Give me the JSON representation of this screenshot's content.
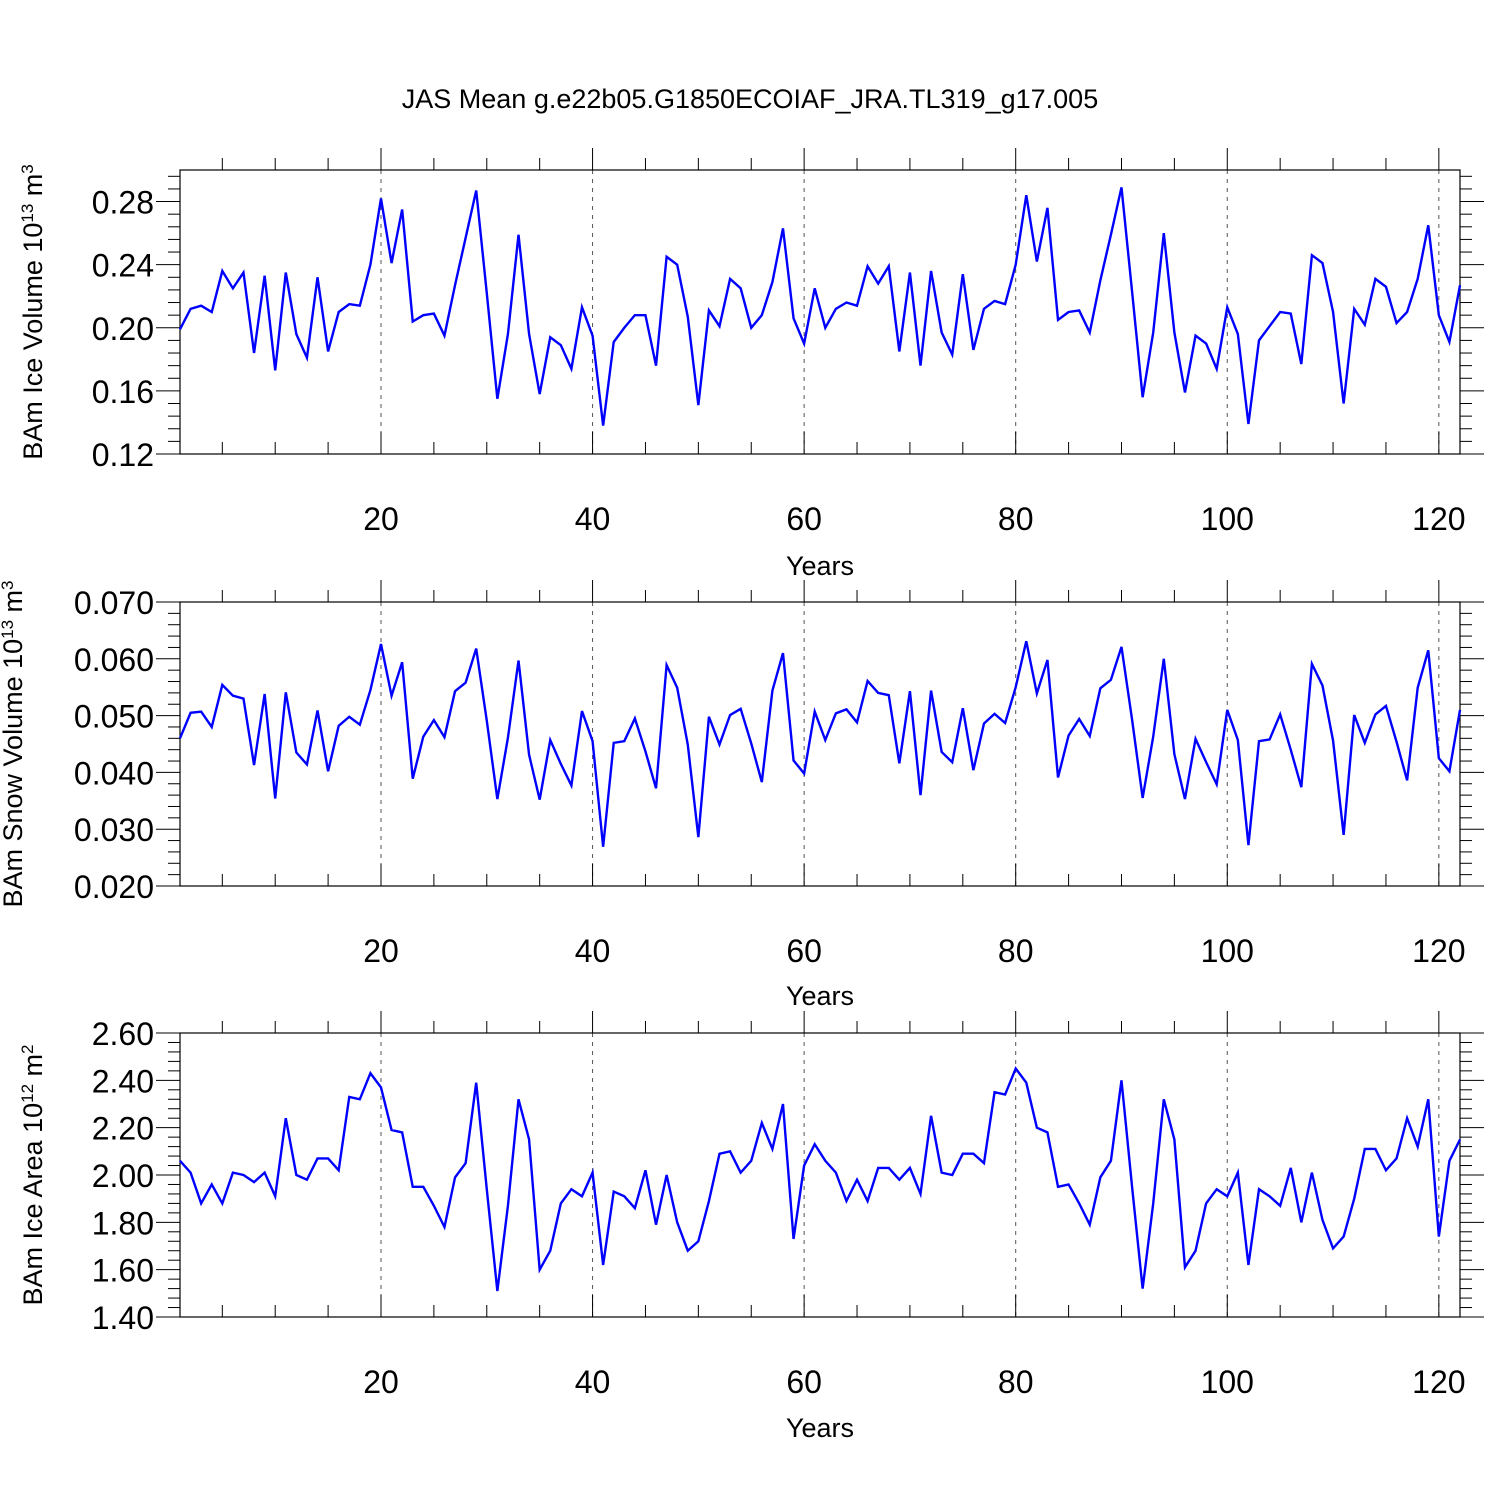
{
  "title": "JAS Mean g.e22b05.G1850ECOIAF_JRA.TL319_g17.005",
  "chart_data": [
    {
      "type": "line",
      "xlabel": "Years",
      "ylabel": {
        "pre": "BAm Ice Volume 10",
        "exp": "13",
        "mid": " m",
        "unit_exp": "3"
      },
      "xlim": [
        1,
        122
      ],
      "ylim": [
        0.12,
        0.3
      ],
      "xticks": [
        20,
        40,
        60,
        80,
        100,
        120
      ],
      "xtick_labels": [
        "20",
        "40",
        "60",
        "80",
        "100",
        "120"
      ],
      "yticks": [
        0.12,
        0.16,
        0.2,
        0.24,
        0.28
      ],
      "ytick_labels": [
        "0.12",
        "0.16",
        "0.20",
        "0.24",
        "0.28"
      ],
      "dashed_gridlines_x": [
        20,
        40,
        60,
        80,
        100,
        120
      ],
      "line_color": "#0000ff",
      "series": [
        {
          "x_start": 1,
          "values": [
            0.199,
            0.212,
            0.214,
            0.21,
            0.236,
            0.225,
            0.235,
            0.184,
            0.233,
            0.173,
            0.235,
            0.196,
            0.181,
            0.232,
            0.185,
            0.21,
            0.215,
            0.214,
            0.24,
            0.282,
            0.241,
            0.275,
            0.204,
            0.208,
            0.209,
            0.195,
            0.227,
            0.257,
            0.287,
            0.222,
            0.155,
            0.196,
            0.259,
            0.196,
            0.158,
            0.194,
            0.189,
            0.174,
            0.213,
            0.195,
            0.138,
            0.191,
            0.2,
            0.208,
            0.208,
            0.176,
            0.245,
            0.24,
            0.207,
            0.151,
            0.211,
            0.201,
            0.231,
            0.225,
            0.2,
            0.208,
            0.229,
            0.263,
            0.206,
            0.19,
            0.225,
            0.2,
            0.212,
            0.216,
            0.214,
            0.239,
            0.228,
            0.239,
            0.185,
            0.235,
            0.176,
            0.236,
            0.197,
            0.183,
            0.234,
            0.186,
            0.212,
            0.217,
            0.215,
            0.24,
            0.284,
            0.242,
            0.276,
            0.205,
            0.21,
            0.211,
            0.197,
            0.23,
            0.259,
            0.289,
            0.223,
            0.156,
            0.197,
            0.26,
            0.197,
            0.159,
            0.195,
            0.19,
            0.174,
            0.213,
            0.196,
            0.139,
            0.192,
            0.201,
            0.21,
            0.209,
            0.177,
            0.246,
            0.241,
            0.21,
            0.152,
            0.212,
            0.202,
            0.231,
            0.226,
            0.203,
            0.21,
            0.231,
            0.265,
            0.208,
            0.191,
            0.227
          ]
        }
      ]
    },
    {
      "type": "line",
      "xlabel": "Years",
      "ylabel": {
        "pre": "BAm Snow Volume 10",
        "exp": "13",
        "mid": " m",
        "unit_exp": "3"
      },
      "xlim": [
        1,
        122
      ],
      "ylim": [
        0.02,
        0.07
      ],
      "xticks": [
        20,
        40,
        60,
        80,
        100,
        120
      ],
      "xtick_labels": [
        "20",
        "40",
        "60",
        "80",
        "100",
        "120"
      ],
      "yticks": [
        0.02,
        0.03,
        0.04,
        0.05,
        0.06,
        0.07
      ],
      "ytick_labels": [
        "0.020",
        "0.030",
        "0.040",
        "0.050",
        "0.060",
        "0.070"
      ],
      "dashed_gridlines_x": [
        20,
        40,
        60,
        80,
        100,
        120
      ],
      "line_color": "#0000ff",
      "series": [
        {
          "x_start": 1,
          "values": [
            0.046,
            0.0505,
            0.0507,
            0.048,
            0.0554,
            0.0535,
            0.053,
            0.0413,
            0.0538,
            0.0354,
            0.0541,
            0.0435,
            0.0414,
            0.0509,
            0.0402,
            0.0482,
            0.0498,
            0.0484,
            0.0545,
            0.0626,
            0.0535,
            0.0594,
            0.0389,
            0.0463,
            0.0492,
            0.0462,
            0.0543,
            0.0558,
            0.0618,
            0.0491,
            0.0353,
            0.0461,
            0.0597,
            0.0431,
            0.0352,
            0.0457,
            0.0415,
            0.0377,
            0.0508,
            0.0455,
            0.0269,
            0.0452,
            0.0455,
            0.0495,
            0.0437,
            0.0372,
            0.0589,
            0.0549,
            0.0449,
            0.0286,
            0.0498,
            0.0449,
            0.0501,
            0.0512,
            0.0451,
            0.0383,
            0.0544,
            0.061,
            0.0421,
            0.0398,
            0.0507,
            0.0457,
            0.0504,
            0.0511,
            0.0488,
            0.0561,
            0.054,
            0.0536,
            0.0416,
            0.0543,
            0.036,
            0.0544,
            0.0436,
            0.0418,
            0.0513,
            0.0404,
            0.0486,
            0.0503,
            0.0487,
            0.055,
            0.0631,
            0.0539,
            0.0598,
            0.0391,
            0.0465,
            0.0494,
            0.0464,
            0.0548,
            0.0563,
            0.0621,
            0.0493,
            0.0355,
            0.0463,
            0.06,
            0.0432,
            0.0353,
            0.0459,
            0.0418,
            0.0379,
            0.051,
            0.0457,
            0.0272,
            0.0455,
            0.0458,
            0.0502,
            0.044,
            0.0374,
            0.0591,
            0.0553,
            0.0456,
            0.029,
            0.0501,
            0.0452,
            0.0502,
            0.0517,
            0.0454,
            0.0386,
            0.0549,
            0.0615,
            0.0425,
            0.0402,
            0.051
          ]
        }
      ]
    },
    {
      "type": "line",
      "xlabel": "Years",
      "ylabel": {
        "pre": "BAm Ice Area 10",
        "exp": "12",
        "mid": " m",
        "unit_exp": "2"
      },
      "xlim": [
        1,
        122
      ],
      "ylim": [
        1.4,
        2.6
      ],
      "xticks": [
        20,
        40,
        60,
        80,
        100,
        120
      ],
      "xtick_labels": [
        "20",
        "40",
        "60",
        "80",
        "100",
        "120"
      ],
      "yticks": [
        1.4,
        1.6,
        1.8,
        2.0,
        2.2,
        2.4,
        2.6
      ],
      "ytick_labels": [
        "1.40",
        "1.60",
        "1.80",
        "2.00",
        "2.20",
        "2.40",
        "2.60"
      ],
      "dashed_gridlines_x": [
        20,
        40,
        60,
        80,
        100,
        120
      ],
      "line_color": "#0000ff",
      "series": [
        {
          "x_start": 1,
          "values": [
            2.06,
            2.01,
            1.88,
            1.96,
            1.88,
            2.01,
            2.0,
            1.97,
            2.01,
            1.91,
            2.24,
            2.0,
            1.98,
            2.07,
            2.07,
            2.02,
            2.33,
            2.32,
            2.43,
            2.37,
            2.19,
            2.18,
            1.95,
            1.95,
            1.87,
            1.78,
            1.99,
            2.05,
            2.39,
            1.94,
            1.51,
            1.87,
            2.32,
            2.15,
            1.6,
            1.68,
            1.88,
            1.94,
            1.91,
            2.01,
            1.62,
            1.93,
            1.91,
            1.86,
            2.02,
            1.79,
            2.0,
            1.8,
            1.68,
            1.72,
            1.89,
            2.09,
            2.1,
            2.01,
            2.06,
            2.22,
            2.11,
            2.3,
            1.73,
            2.04,
            2.13,
            2.06,
            2.01,
            1.89,
            1.98,
            1.89,
            2.03,
            2.03,
            1.98,
            2.03,
            1.92,
            2.25,
            2.01,
            2.0,
            2.09,
            2.09,
            2.05,
            2.35,
            2.34,
            2.45,
            2.39,
            2.2,
            2.18,
            1.95,
            1.96,
            1.88,
            1.79,
            1.99,
            2.06,
            2.4,
            1.95,
            1.52,
            1.88,
            2.32,
            2.15,
            1.61,
            1.68,
            1.88,
            1.94,
            1.91,
            2.01,
            1.62,
            1.94,
            1.91,
            1.87,
            2.03,
            1.8,
            2.01,
            1.81,
            1.69,
            1.74,
            1.9,
            2.11,
            2.11,
            2.02,
            2.07,
            2.24,
            2.12,
            2.32,
            1.74,
            2.06,
            2.15
          ]
        }
      ]
    }
  ]
}
